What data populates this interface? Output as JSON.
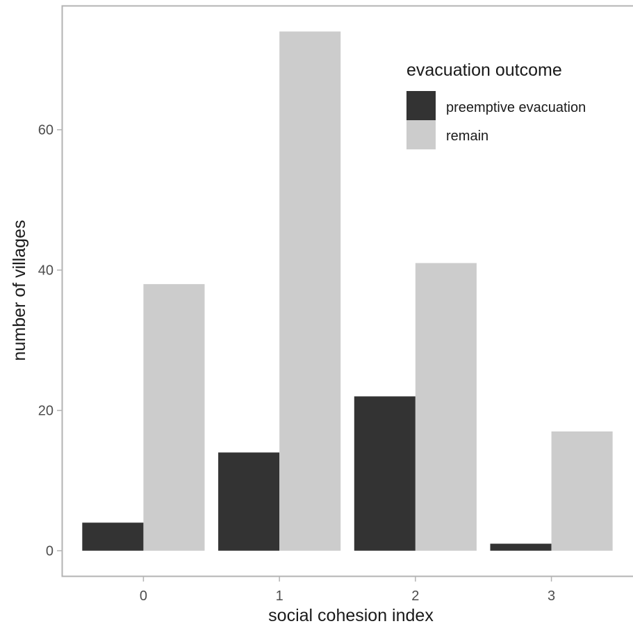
{
  "chart_data": {
    "type": "bar",
    "title": "",
    "xlabel": "social cohesion index",
    "ylabel": "number of villages",
    "categories": [
      "0",
      "1",
      "2",
      "3"
    ],
    "series": [
      {
        "name": "preemptive evacuation",
        "values": [
          4,
          14,
          22,
          1
        ],
        "color": "#333333"
      },
      {
        "name": "remain",
        "values": [
          38,
          74,
          41,
          17
        ],
        "color": "#cccccc"
      }
    ],
    "ylim": [
      -3.7,
      77.7
    ],
    "yticks": [
      0,
      20,
      40,
      60
    ],
    "grid": false,
    "legend": {
      "title": "evacuation outcome",
      "placement": "top-right"
    }
  }
}
